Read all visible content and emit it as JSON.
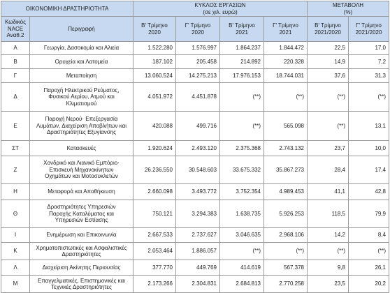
{
  "header": {
    "activity": "ΟΙΚΟΝΟΜΙΚΗ ΔΡΑΣΤΗΡΙΟΤΗΤΑ",
    "turnover": "ΚΥΚΛΟΣ ΕΡΓΑΣΙΩΝ",
    "turnover_unit": "(σε χιλ. ευρώ)",
    "change": "ΜΕΤΑΒΟΛΗ",
    "change_unit": "(%)",
    "columns": [
      "Κωδικός NACE Αναθ.2",
      "Περιγραφή",
      "Β' Τρίμηνο 2020",
      "Γ' Τρίμηνο 2020",
      "Β' Τρίμηνο 2021",
      "Γ' Τρίμηνο 2021",
      "Β' Τρίμηνο 2021/2020",
      "Γ' Τρίμηνο 2021/2020"
    ]
  },
  "table": {
    "rows": [
      [
        "Α",
        "Γεωργία, Δασοκομία και Αλιεία",
        "1.522.280",
        "1.576.997",
        "1.864.237",
        "1.844.472",
        "22,5",
        "17,0"
      ],
      [
        "Β",
        "Ορυχεία και Λατομεία",
        "187.102",
        "205.458",
        "214.892",
        "220.328",
        "14,9",
        "7,2"
      ],
      [
        "Γ",
        "Μεταποίηση",
        "13.060.524",
        "14.275.213",
        "17.976.153",
        "18.744.031",
        "37,6",
        "31,3"
      ],
      [
        "Δ",
        "Παροχή Ηλεκτρικού Ρεύματος, Φυσικού Αερίου, Ατμού και Κλιματισμού",
        "4.051.972",
        "4.451.878",
        "(**)",
        "(**)",
        "(**)",
        "(**)"
      ],
      [
        "Ε",
        "Παροχή Νερού· Επεξεργασία Λυμάτων, Διαχείριση Αποβλήτων και Δραστηριότητες Εξυγίανσης",
        "420.088",
        "499.716",
        "(**)",
        "565.098",
        "(**)",
        "13,1"
      ],
      [
        "ΣΤ",
        "Κατασκευές",
        "1.920.624",
        "2.493.120",
        "2.375.368",
        "2.743.132",
        "23,7",
        "10,0"
      ],
      [
        "Ζ",
        "Χονδρικό και Λιανικό Εμπόριο· Επισκευή Μηχανοκίνητων Οχημάτων και Μοτοσυκλετών",
        "26.236.550",
        "30.548.603",
        "33.675.332",
        "35.867.273",
        "28,4",
        "17,4"
      ],
      [
        "Η",
        "Μεταφορά και Αποθήκευση",
        "2.660.098",
        "3.493.772",
        "3.752.354",
        "4.989.453",
        "41,1",
        "42,8"
      ],
      [
        "Θ",
        "Δραστηριότητες Υπηρεσιών Παροχής Καταλύματος και Υπηρεσιών Εστίασης",
        "750.121",
        "3.294.383",
        "1.638.735",
        "5.926.253",
        "118,5",
        "79,9"
      ],
      [
        "Ι",
        "Ενημέρωση και Επικοινωνία",
        "2.667.533",
        "2.737.627",
        "3.046.635",
        "2.968.106",
        "14,2",
        "8,4"
      ],
      [
        "Κ",
        "Χρηματοπιστωτικές και Ασφαλιστικές Δραστηριότητες",
        "2.053.464",
        "1.886.057",
        "(**)",
        "(**)",
        "(**)",
        "(**)"
      ],
      [
        "Λ",
        "Διαχείριση Ακίνητης Περιουσίας",
        "377.770",
        "449.769",
        "414.619",
        "567.378",
        "9,8",
        "26,1"
      ],
      [
        "Μ",
        "Επαγγελματικές, Επιστημονικές και Τεχνικές Δραστηριότητες",
        "2.173.266",
        "2.304.831",
        "2.684.813",
        "2.770.258",
        "23,5",
        "20,2"
      ]
    ]
  }
}
